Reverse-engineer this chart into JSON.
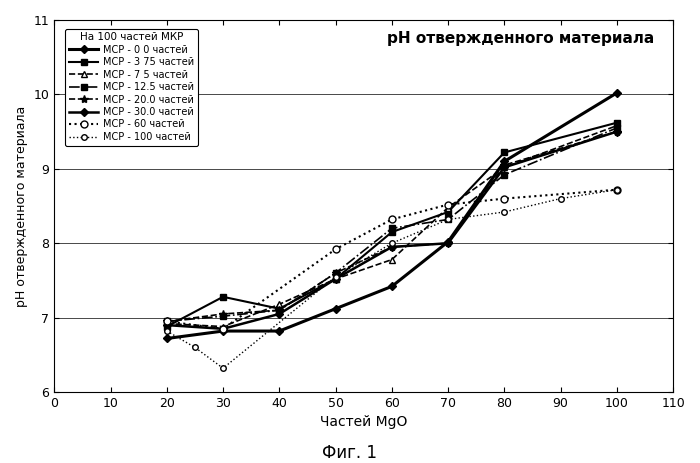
{
  "title": "pH отвержденного материала",
  "xlabel": "Частей MgO",
  "ylabel": "pH отвержденного материала",
  "legend_title": "На 100 частей МКР",
  "caption": "Фиг. 1",
  "xlim": [
    0,
    110
  ],
  "ylim": [
    6.0,
    11.0
  ],
  "xticks": [
    0,
    10,
    20,
    30,
    40,
    50,
    60,
    70,
    80,
    90,
    100,
    110
  ],
  "yticks": [
    6.0,
    7.0,
    8.0,
    9.0,
    10.0,
    11.0
  ],
  "series": [
    {
      "label": "МСР - 0 0 частей",
      "x": [
        20,
        30,
        40,
        50,
        60,
        70,
        80,
        100
      ],
      "y": [
        6.72,
        6.82,
        6.82,
        7.12,
        7.42,
        8.02,
        9.1,
        10.02
      ],
      "linestyle": "-",
      "marker": "D",
      "markersize": 4,
      "linewidth": 2.2,
      "markerfacecolor": "black"
    },
    {
      "label": "МСР - 3 75 частей",
      "x": [
        20,
        30,
        40,
        50,
        60,
        70,
        80,
        100
      ],
      "y": [
        6.88,
        7.28,
        7.12,
        7.52,
        8.15,
        8.42,
        9.22,
        9.62
      ],
      "linestyle": "-",
      "marker": "s",
      "markersize": 4,
      "linewidth": 1.5,
      "markerfacecolor": "black"
    },
    {
      "label": "МСР - 7 5 частей",
      "x": [
        20,
        30,
        40,
        50,
        60,
        70,
        80,
        100
      ],
      "y": [
        6.92,
        6.88,
        7.18,
        7.52,
        7.78,
        8.48,
        9.02,
        9.58
      ],
      "linestyle": "--",
      "marker": "^",
      "markersize": 4,
      "linewidth": 1.2,
      "markerfacecolor": "white"
    },
    {
      "label": "МСР - 12.5 частей",
      "x": [
        20,
        30,
        40,
        50,
        60,
        70,
        80,
        100
      ],
      "y": [
        6.95,
        7.02,
        7.1,
        7.6,
        8.2,
        8.32,
        8.92,
        9.55
      ],
      "linestyle": "-.",
      "marker": "s",
      "markersize": 4,
      "linewidth": 1.2,
      "markerfacecolor": "black"
    },
    {
      "label": "МСР - 20.0 частей",
      "x": [
        20,
        30,
        40,
        50,
        60,
        70,
        80,
        100
      ],
      "y": [
        6.95,
        7.05,
        7.1,
        7.6,
        7.95,
        8.0,
        9.05,
        9.5
      ],
      "linestyle": "--",
      "marker": "*",
      "markersize": 6,
      "linewidth": 1.2,
      "markerfacecolor": "black"
    },
    {
      "label": "МСР - 30.0 частей",
      "x": [
        20,
        30,
        40,
        50,
        60,
        70,
        80,
        100
      ],
      "y": [
        6.9,
        6.85,
        7.05,
        7.52,
        7.95,
        8.0,
        9.02,
        9.5
      ],
      "linestyle": "-",
      "marker": "D",
      "markersize": 4,
      "linewidth": 1.8,
      "markerfacecolor": "black"
    },
    {
      "label": "МСР - 60 частей",
      "x": [
        20,
        30,
        50,
        60,
        70,
        80,
        100
      ],
      "y": [
        6.95,
        6.85,
        7.92,
        8.32,
        8.52,
        8.6,
        8.72
      ],
      "linestyle": ":",
      "marker": "o",
      "markersize": 5,
      "linewidth": 1.5,
      "markerfacecolor": "white"
    },
    {
      "label": "МСР - 100 частей",
      "x": [
        20,
        25,
        30,
        50,
        60,
        70,
        80,
        90,
        100
      ],
      "y": [
        6.82,
        6.6,
        6.32,
        7.55,
        8.0,
        8.32,
        8.42,
        8.6,
        8.72
      ],
      "linestyle": ":",
      "marker": "o",
      "markersize": 4,
      "linewidth": 1.0,
      "markerfacecolor": "white"
    }
  ]
}
